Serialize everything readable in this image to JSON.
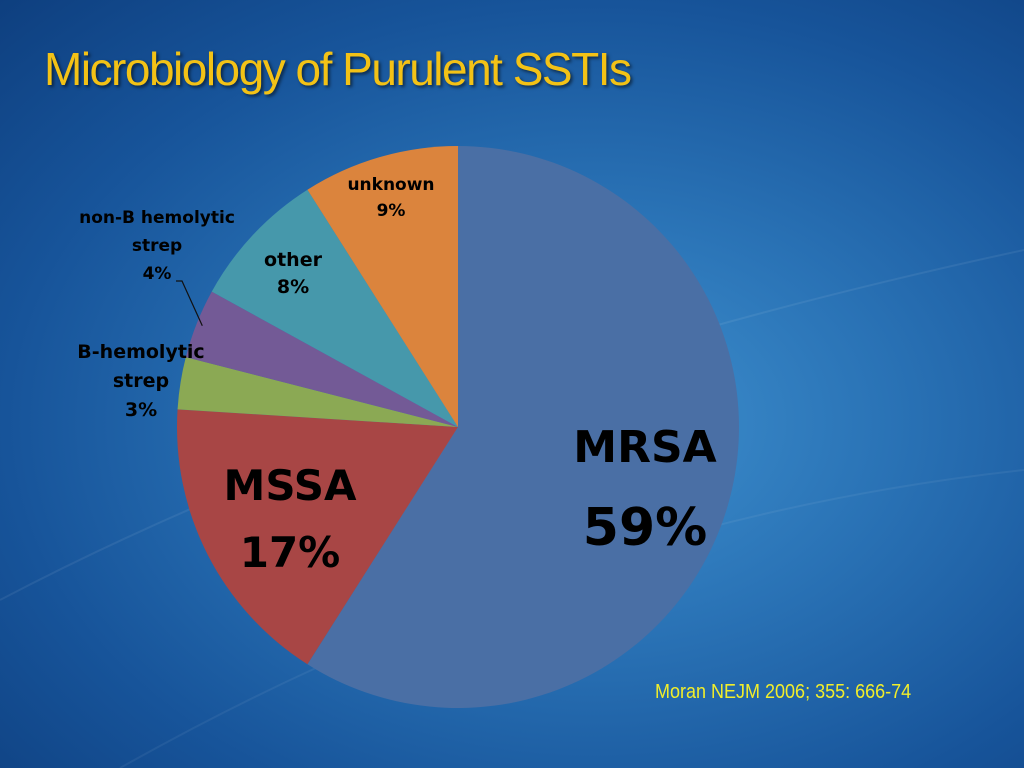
{
  "slide": {
    "title": "Microbiology of Purulent SSTIs",
    "citation": "Moran NEJM 2006; 355: 666-74"
  },
  "chart_data": {
    "type": "pie",
    "title": "Microbiology of Purulent SSTIs",
    "start_angle_deg": 0,
    "direction": "clockwise",
    "slices": [
      {
        "label": "MRSA",
        "value": 59,
        "value_label": "59%",
        "color": "#4a6fa5"
      },
      {
        "label": "MSSA",
        "value": 17,
        "value_label": "17%",
        "color": "#a84645"
      },
      {
        "label": "B-hemolytic strep",
        "label_lines": [
          "B-hemolytic",
          "strep"
        ],
        "value": 3,
        "value_label": "3%",
        "color": "#8ba954"
      },
      {
        "label": "non-B hemolytic strep",
        "label_lines": [
          "non-B hemolytic",
          "strep"
        ],
        "value": 4,
        "value_label": "4%",
        "color": "#735a96"
      },
      {
        "label": "other",
        "value": 8,
        "value_label": "8%",
        "color": "#4698ab"
      },
      {
        "label": "unknown",
        "value": 9,
        "value_label": "9%",
        "color": "#db843d"
      }
    ]
  }
}
